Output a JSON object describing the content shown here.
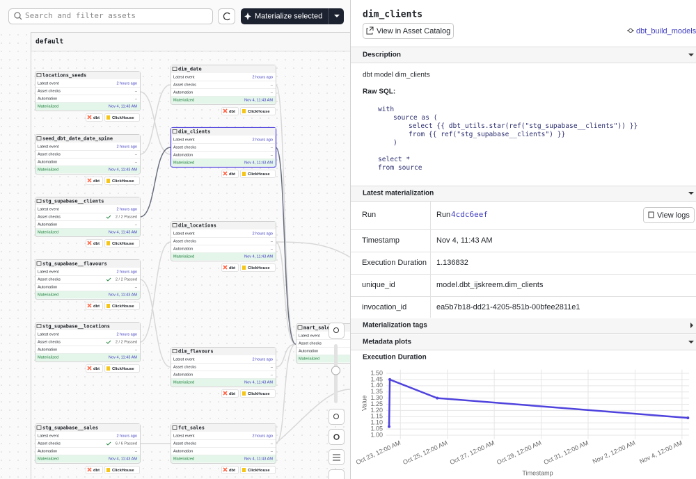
{
  "toolbar": {
    "search_placeholder": "Search and filter assets",
    "materialize_button": "Materialize selected"
  },
  "graph": {
    "group": "default",
    "row_labels": [
      "Latest event",
      "Asset checks",
      "Automation",
      "Materialized"
    ],
    "nodes": [
      {
        "name": "locations_seeds",
        "latest_event": "2 hours ago",
        "asset_checks": "–",
        "automation": "–",
        "materialized": "Nov 4, 11:43 AM",
        "tags": [
          "dbt",
          "ClickHouse"
        ]
      },
      {
        "name": "seed_dbt_date_date_spine",
        "latest_event": "2 hours ago",
        "asset_checks": "–",
        "automation": "–",
        "materialized": "Nov 4, 11:43 AM",
        "tags": [
          "dbt",
          "ClickHouse"
        ]
      },
      {
        "name": "stg_supabase__clients",
        "latest_event": "2 hours ago",
        "asset_checks": "2 / 2 Passed",
        "automation": "–",
        "materialized": "Nov 4, 11:43 AM",
        "tags": [
          "dbt",
          "ClickHouse"
        ]
      },
      {
        "name": "stg_supabase__flavours",
        "latest_event": "2 hours ago",
        "asset_checks": "2 / 2 Passed",
        "automation": "–",
        "materialized": "Nov 4, 11:43 AM",
        "tags": [
          "dbt",
          "ClickHouse"
        ]
      },
      {
        "name": "stg_supabase__locations",
        "latest_event": "2 hours ago",
        "asset_checks": "2 / 2 Passed",
        "automation": "–",
        "materialized": "Nov 4, 11:43 AM",
        "tags": [
          "dbt",
          "ClickHouse"
        ]
      },
      {
        "name": "stg_supabase__sales",
        "latest_event": "2 hours ago",
        "asset_checks": "6 / 6 Passed",
        "automation": "–",
        "materialized": "Nov 4, 11:43 AM",
        "tags": [
          "dbt",
          "ClickHouse"
        ]
      },
      {
        "name": "dim_date",
        "latest_event": "2 hours ago",
        "asset_checks": "–",
        "automation": "–",
        "materialized": "Nov 4, 11:43 AM",
        "tags": [
          "dbt",
          "ClickHouse"
        ]
      },
      {
        "name": "dim_clients",
        "latest_event": "2 hours ago",
        "asset_checks": "–",
        "automation": "–",
        "materialized": "Nov 4, 11:43 AM",
        "tags": [
          "dbt",
          "ClickHouse"
        ]
      },
      {
        "name": "dim_locations",
        "latest_event": "2 hours ago",
        "asset_checks": "–",
        "automation": "–",
        "materialized": "Nov 4, 11:43 AM",
        "tags": [
          "dbt",
          "ClickHouse"
        ]
      },
      {
        "name": "dim_flavours",
        "latest_event": "2 hours ago",
        "asset_checks": "–",
        "automation": "–",
        "materialized": "Nov 4, 11:43 AM",
        "tags": [
          "dbt",
          "ClickHouse"
        ]
      },
      {
        "name": "fct_sales",
        "latest_event": "2 hours ago",
        "asset_checks": "–",
        "automation": "–",
        "materialized": "Nov 4, 11:43 AM",
        "tags": [
          "dbt",
          "ClickHouse"
        ]
      },
      {
        "name": "mart_sales"
      }
    ]
  },
  "detail": {
    "title": "dim_clients",
    "catalog_button": "View in Asset Catalog",
    "job_link": "dbt_build_models",
    "description_header": "Description",
    "description": "dbt model dim_clients",
    "raw_sql_label": "Raw SQL:",
    "sql": [
      "with",
      "source as (",
      "select {{ dbt_utils.star(ref(\"stg_supabase__clients\")) }}",
      "from {{ ref(\"stg_supabase__clients\") }}",
      ")",
      "select *",
      "from source"
    ],
    "materialization_header": "Latest materialization",
    "run_label": "Run",
    "run_prefix": "Run",
    "run_id": "4cdc6eef",
    "view_logs": "View logs",
    "rows": [
      {
        "label": "Timestamp",
        "value": "Nov 4, 11:43 AM"
      },
      {
        "label": "Execution Duration",
        "value": "1.136832"
      },
      {
        "label": "unique_id",
        "value": "model.dbt_ijskreem.dim_clients"
      },
      {
        "label": "invocation_id",
        "value": "ea5b7b18-dd21-4205-851b-00bfee2811e1"
      }
    ],
    "tags_header": "Materialization tags",
    "plots_header": "Metadata plots"
  },
  "chart_data": {
    "type": "line",
    "title": "Execution Duration",
    "xlabel": "Timestamp",
    "ylabel": "Value",
    "x": [
      22.52,
      22.55,
      24.57,
      35.25
    ],
    "series": [
      {
        "values": [
          1.07,
          1.45,
          1.3,
          1.14
        ],
        "color": "#4f43dd"
      }
    ],
    "xlim": [
      22.4,
      35.3
    ],
    "xticks": [
      {
        "value": 23,
        "label": "Oct 23, 12:00 AM"
      },
      {
        "value": 25,
        "label": "Oct 25, 12:00 AM"
      },
      {
        "value": 27,
        "label": "Oct 27, 12:00 AM"
      },
      {
        "value": 29,
        "label": "Oct 29, 12:00 AM"
      },
      {
        "value": 31,
        "label": "Oct 31, 12:00 AM"
      },
      {
        "value": 33,
        "label": "Nov 2, 12:00 AM"
      },
      {
        "value": 35,
        "label": "Nov 4, 12:00 AM"
      }
    ],
    "ylim": [
      0.99,
      1.53
    ],
    "yticks": [
      {
        "value": 1,
        "label": "1.00"
      },
      {
        "value": 1.05,
        "label": "1.05"
      },
      {
        "value": 1.1,
        "label": "1.10"
      },
      {
        "value": 1.15,
        "label": "1.15"
      },
      {
        "value": 1.2,
        "label": "1.20"
      },
      {
        "value": 1.25,
        "label": "1.25"
      },
      {
        "value": 1.3,
        "label": "1.30"
      },
      {
        "value": 1.35,
        "label": "1.35"
      },
      {
        "value": 1.4,
        "label": "1.40"
      },
      {
        "value": 1.45,
        "label": "1.45"
      },
      {
        "value": 1.5,
        "label": "1.50"
      }
    ],
    "grid": true
  }
}
